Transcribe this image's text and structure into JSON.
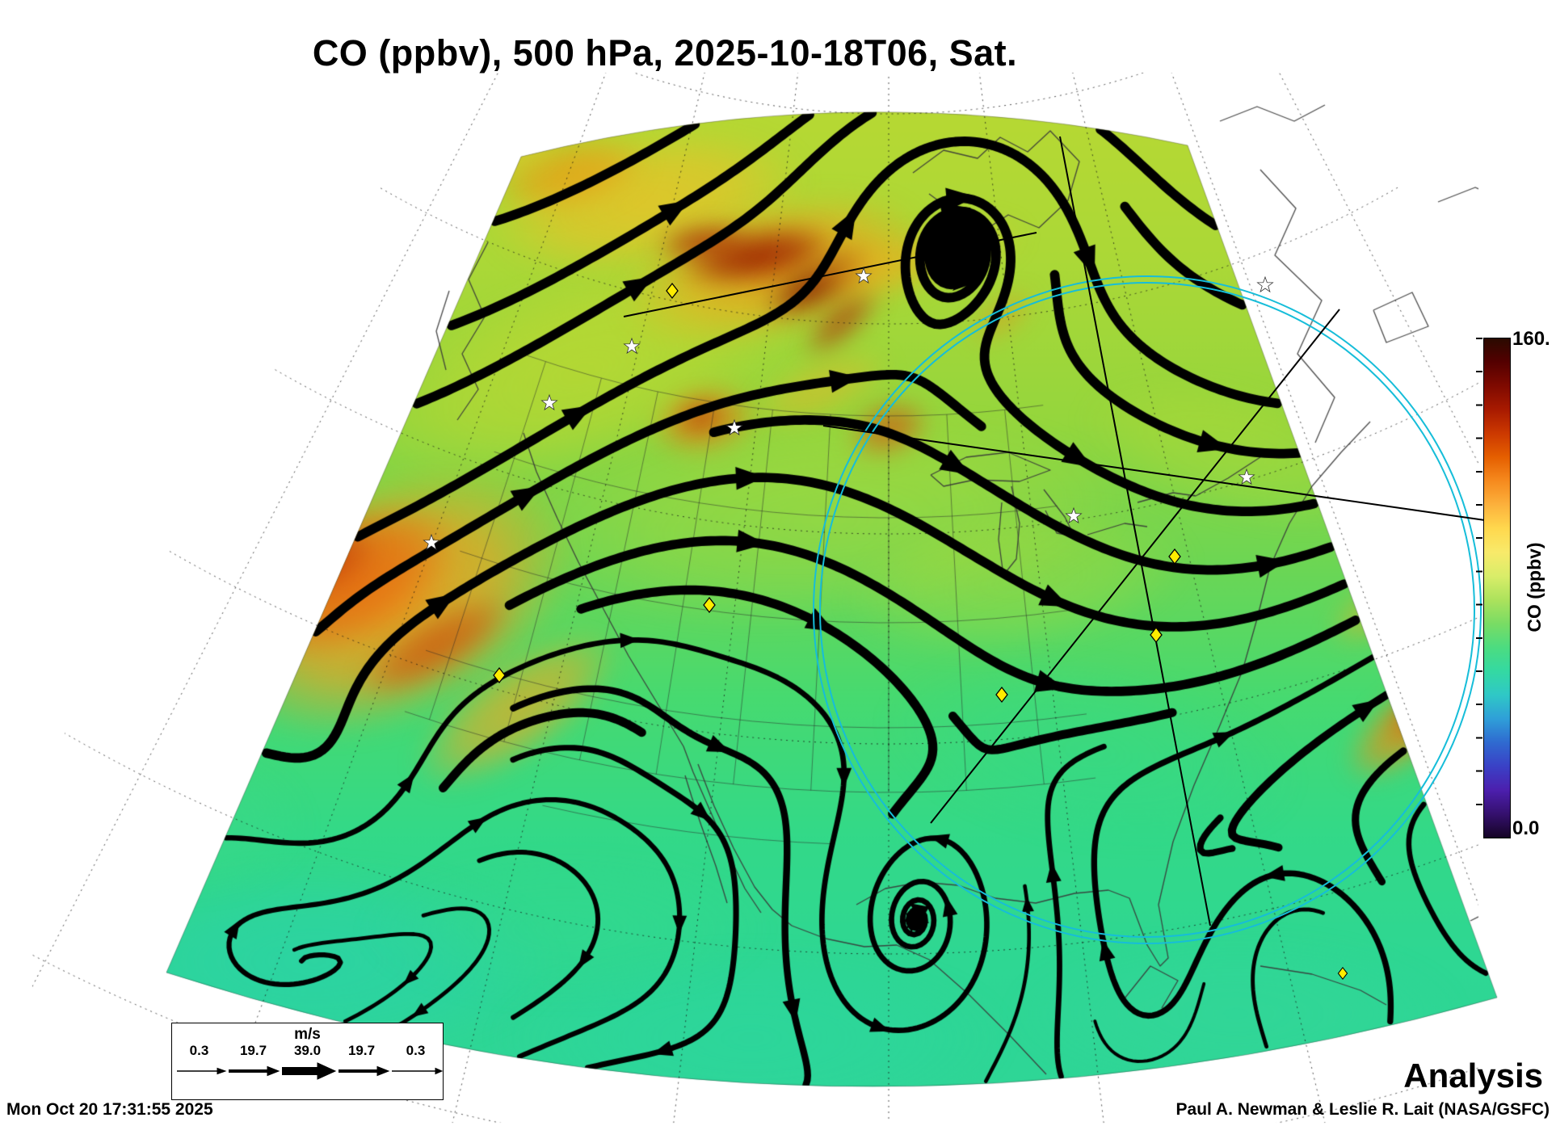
{
  "title": "CO (ppbv), 500 hPa, 2025-10-18T06, Sat.",
  "analysis_label": "Analysis",
  "footer": {
    "timestamp": "Mon Oct 20 17:31:55 2025",
    "credit": "Paul A. Newman & Leslie R. Lait (NASA/GSFC)"
  },
  "colorbar": {
    "title": "CO (ppbv)",
    "max_label": "160.",
    "min_label": "0.0",
    "unit": "ppbv",
    "stops": [
      "#2a0a00",
      "#540000",
      "#7f0a00",
      "#a81a00",
      "#cc3900",
      "#e55f00",
      "#f68a1e",
      "#fcb13c",
      "#ffd84e",
      "#f8ea6a",
      "#d9ed69",
      "#ace25c",
      "#79dc64",
      "#4cdc80",
      "#34d9a2",
      "#2fc8c6",
      "#2f9fd8",
      "#2f6ad0",
      "#3a41c6",
      "#4c1fae",
      "#35106e",
      "#150425"
    ]
  },
  "wind_legend": {
    "units_label": "m/s",
    "tick_labels": [
      "0.3",
      "19.7",
      "39.0",
      "19.7",
      "0.3"
    ]
  },
  "map": {
    "overlay_colors": {
      "circle": "#16bdd9",
      "track_line": "#000000",
      "site_marker": "#ffec00"
    },
    "marker_counts": {
      "diamond_sites": 7,
      "star_sites": 8
    }
  },
  "chart_data": {
    "type": "heatmap",
    "title": "CO (ppbv), 500 hPa, 2025-10-18T06, Sat.",
    "field": "Carbon monoxide mixing ratio",
    "level": "500 hPa",
    "valid_time": "2025-10-18T06",
    "day": "Sat.",
    "mode": "Analysis",
    "colorbar_range": [
      0.0,
      160.0
    ],
    "colorbar_label": "CO (ppbv)",
    "wind_legend_speeds_ms": [
      0.3,
      19.7,
      39.0,
      19.7,
      0.3
    ],
    "notes": "Filled CO analysis field over a conic North America sector: mostly 40-90 ppbv greens/yellow-greens, orange-red maxima (120-160 ppbv) over the western US and north-central Canada, cooler teal-green minima to the south; overlaid black 500 hPa wind streamlines with arrowheads (strong wavy westerlies north, weak easterlies with cyclonic eddies south), dotted lat-lon graticule, coastlines/state borders, a cyan satellite scan circle with black ground-track lines over eastern North America, yellow diamond and white star site markers."
  }
}
